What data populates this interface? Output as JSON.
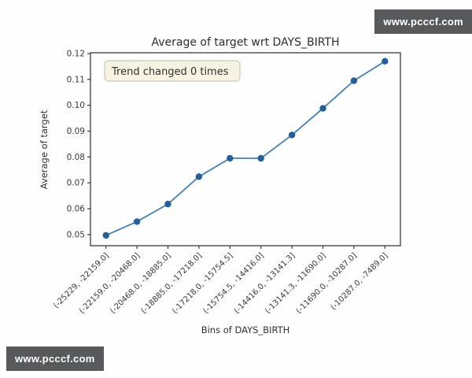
{
  "watermark_top": "www.pcccf.com",
  "watermark_bottom": "www.pcccf.com",
  "colors": {
    "watermark_bg": "#58595b",
    "annotation_bg": "#f7f3e3",
    "annotation_border": "#cbc8b8",
    "line": "#4381b0",
    "marker": "#265f93"
  },
  "chart_data": {
    "type": "line",
    "title": "Average of target wrt DAYS_BIRTH",
    "xlabel": "Bins of DAYS_BIRTH",
    "ylabel": "Average of target",
    "annotation": "Trend changed 0 times",
    "categories": [
      "(-25229, -22159.0]",
      "(-22159.0, -20468.0]",
      "(-20468.0, -18885.0]",
      "(-18885.0, -17218.0]",
      "(-17218.0, -15754.5]",
      "(-15754.5, -14416.0]",
      "(-14416.0, -13141.3]",
      "(-13141.3, -11690.0]",
      "(-11690.0, -10287.0]",
      "(-10287.0, -7489.0]"
    ],
    "values": [
      0.0497,
      0.055,
      0.0618,
      0.0724,
      0.0795,
      0.0795,
      0.0885,
      0.0988,
      0.1095,
      0.117
    ],
    "ytick_labels": [
      "0.05",
      "0.06",
      "0.07",
      "0.08",
      "0.09",
      "0.10",
      "0.11",
      "0.12"
    ],
    "ylim": [
      0.0457,
      0.1203
    ],
    "xtick_rotation": -45,
    "grid": false,
    "legend": null,
    "marker": "circle"
  }
}
